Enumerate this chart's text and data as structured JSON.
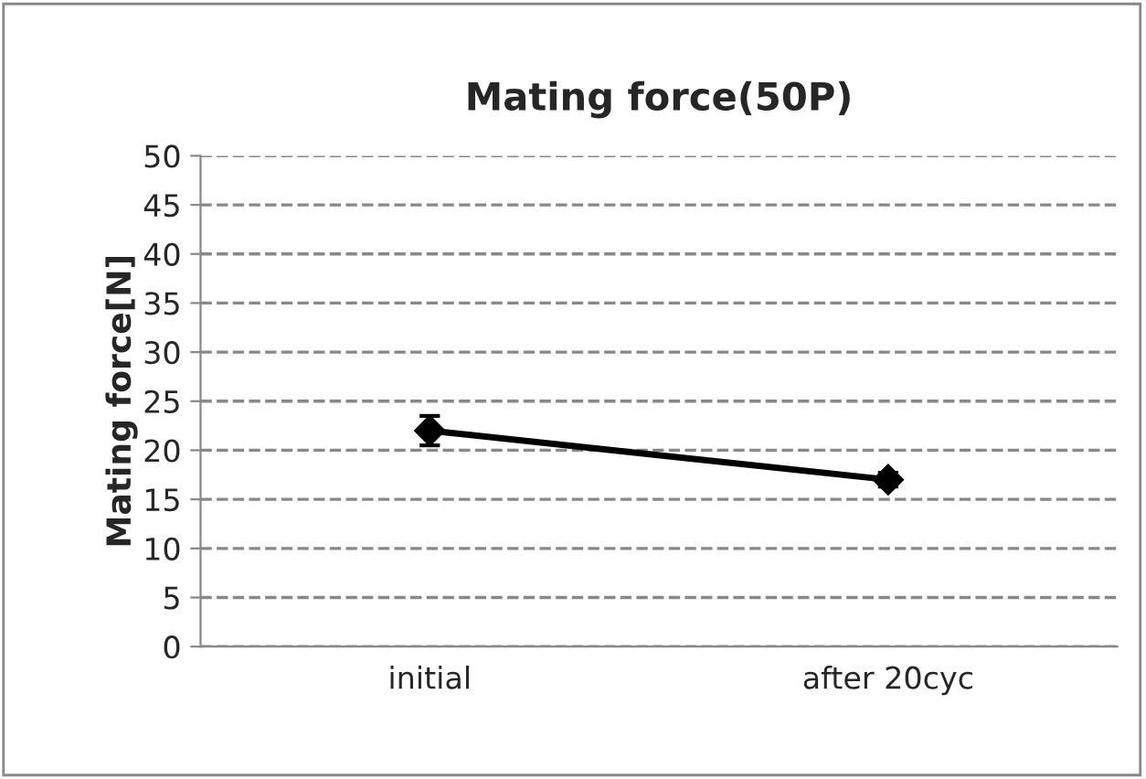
{
  "chart_data": {
    "type": "line",
    "title": "Mating force(50P)",
    "ylabel": "Mating force[N]",
    "categories": [
      "initial",
      "after 20cyc"
    ],
    "series": [
      {
        "color": "#000000",
        "values": [
          22,
          17
        ],
        "errors": [
          1.5,
          0.7
        ]
      }
    ],
    "ylim": [
      0,
      50
    ],
    "yticks": [
      0,
      5,
      10,
      15,
      20,
      25,
      30,
      35,
      40,
      45,
      50
    ],
    "grid": "y",
    "marker": "diamond",
    "line_style": "solid",
    "legend": false
  }
}
